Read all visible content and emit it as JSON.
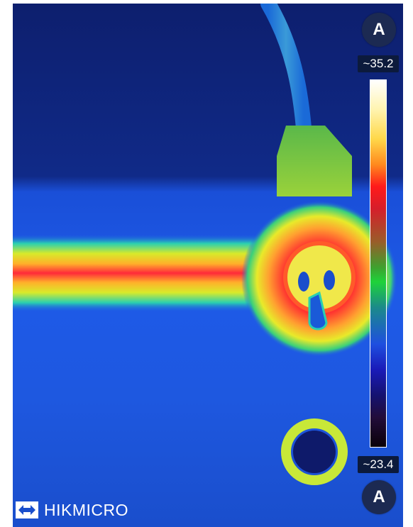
{
  "controls": {
    "auto_top_label": "A",
    "auto_bottom_label": "A"
  },
  "temperature_scale": {
    "max_label": "~35.2",
    "min_label": "~23.4",
    "palette": "ironbow-rainbow"
  },
  "brand": {
    "name": "HIKMICRO",
    "logo_icon": "hikmicro-logo-icon"
  },
  "colors": {
    "background_cold": "#0a2a8c",
    "hot": "#ff1a1a",
    "button": "#1c2a52"
  }
}
